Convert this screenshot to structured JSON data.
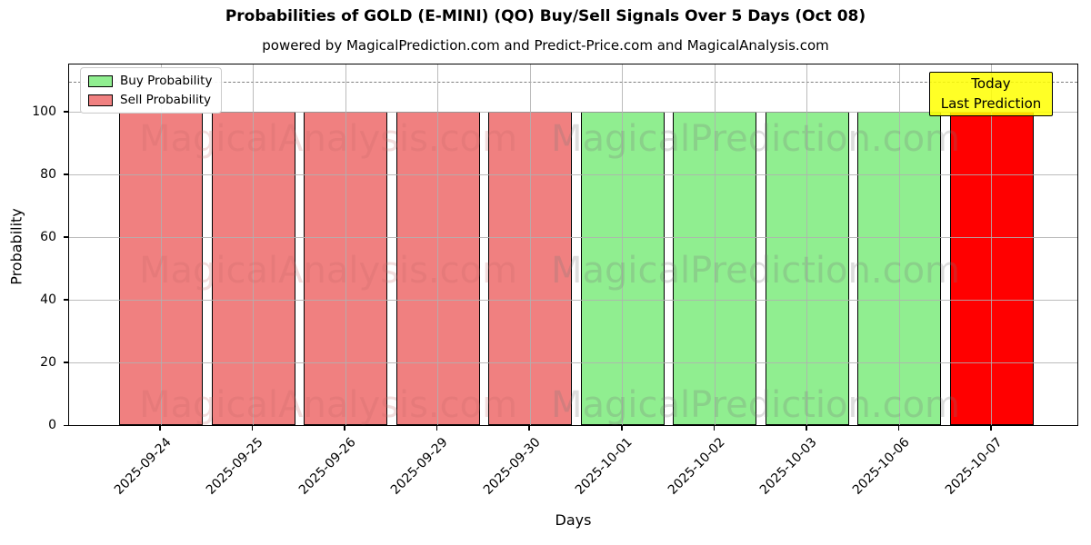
{
  "title": "Probabilities of GOLD (E-MINI) (QO) Buy/Sell Signals Over 5 Days (Oct 08)",
  "subtitle": "powered by MagicalPrediction.com and Predict-Price.com and MagicalAnalysis.com",
  "axes": {
    "ylabel": "Probability",
    "xlabel": "Days",
    "yticks": [
      0,
      20,
      40,
      60,
      80,
      100
    ],
    "ylim": [
      0,
      115.5
    ],
    "dashed_line_y": 110
  },
  "legend": {
    "items": [
      {
        "label": "Buy Probability",
        "color": "#90EE90"
      },
      {
        "label": "Sell Probability",
        "color": "#F08080"
      }
    ]
  },
  "annotation": {
    "line1": "Today",
    "line2": "Last Prediction",
    "bg_color": "#FFFF00"
  },
  "watermarks": {
    "left": "MagicalAnalysis.com",
    "right": "MagicalPrediction.com"
  },
  "colors": {
    "buy": "#90EE90",
    "sell": "#F08080",
    "today_sell": "#FF0000",
    "grid": "#b0b0b0",
    "annotation_bg": "#FFFF00"
  },
  "chart_data": {
    "type": "bar",
    "title": "Probabilities of GOLD (E-MINI) (QO) Buy/Sell Signals Over 5 Days (Oct 08)",
    "xlabel": "Days",
    "ylabel": "Probability",
    "categories": [
      "2025-09-24",
      "2025-09-25",
      "2025-09-26",
      "2025-09-29",
      "2025-09-30",
      "2025-10-01",
      "2025-10-02",
      "2025-10-03",
      "2025-10-06",
      "2025-10-07"
    ],
    "series": [
      {
        "name": "Buy Probability",
        "values": [
          0,
          0,
          0,
          0,
          0,
          100,
          100,
          100,
          100,
          0
        ]
      },
      {
        "name": "Sell Probability",
        "values": [
          100,
          100,
          100,
          100,
          100,
          0,
          0,
          0,
          0,
          100
        ]
      }
    ],
    "bar_values": [
      100,
      100,
      100,
      100,
      100,
      100,
      100,
      100,
      100,
      100
    ],
    "bar_signals": [
      "sell",
      "sell",
      "sell",
      "sell",
      "sell",
      "buy",
      "buy",
      "buy",
      "buy",
      "sell"
    ],
    "bar_colors": [
      "#F08080",
      "#F08080",
      "#F08080",
      "#F08080",
      "#F08080",
      "#90EE90",
      "#90EE90",
      "#90EE90",
      "#90EE90",
      "#FF0000"
    ],
    "ylim": [
      0,
      115.5
    ],
    "grid": true,
    "legend_position": "upper left",
    "reference_line": {
      "y": 110,
      "style": "dashed",
      "color": "#808080"
    }
  }
}
